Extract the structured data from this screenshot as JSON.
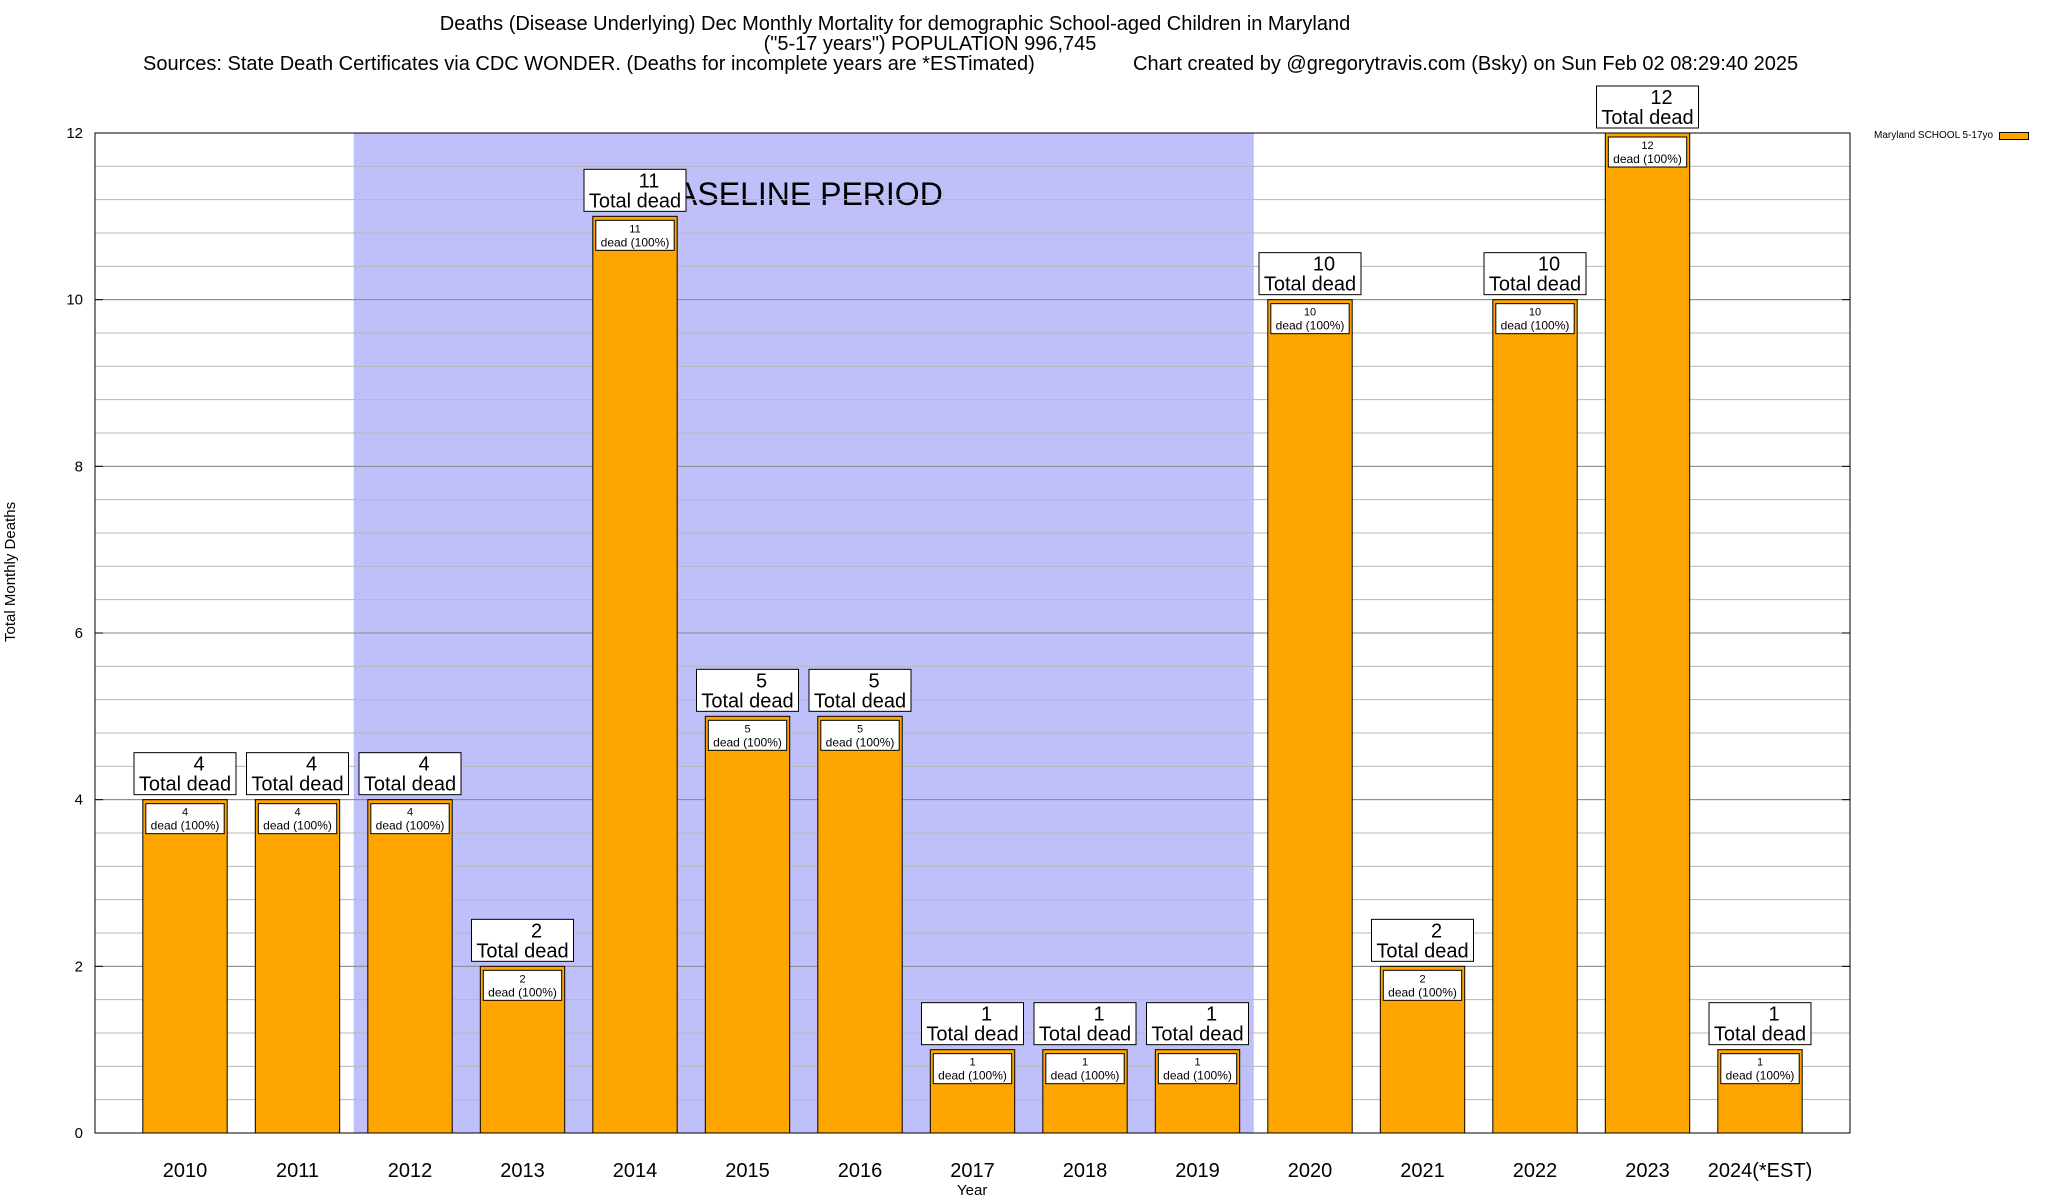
{
  "title": {
    "line1": "Deaths (Disease Underlying) Dec Monthly Mortality for demographic School-aged Children in Maryland",
    "line2": "(\"5-17 years\") POPULATION 996,745",
    "line3": "Sources: State Death Certificates via CDC WONDER. (Deaths for incomplete years are *ESTimated)",
    "credit": "Chart created by @gregorytravis.com (Bsky) on Sun Feb 02 08:29:40 2025"
  },
  "legend": {
    "label": "Maryland SCHOOL 5-17yo",
    "color": "#ffa500"
  },
  "chart_data": {
    "type": "bar",
    "xlabel": "Year",
    "ylabel": "Total Monthly Deaths",
    "ylim": [
      0,
      12
    ],
    "yticks": [
      0,
      2,
      4,
      6,
      8,
      10,
      12
    ],
    "grid": true,
    "legend_position": "top-right outside",
    "baseline_label": "BASELINE PERIOD",
    "baseline_range": [
      "2012",
      "2019"
    ],
    "bar_color": "#ffa500",
    "baseline_color": "#bfbffa",
    "total_label_text": "Total dead",
    "inner_label_text": "dead (100%)",
    "categories": [
      "2010",
      "2011",
      "2012",
      "2013",
      "2014",
      "2015",
      "2016",
      "2017",
      "2018",
      "2019",
      "2020",
      "2021",
      "2022",
      "2023",
      "2024(*EST)"
    ],
    "series": [
      {
        "values": [
          4,
          4,
          4,
          2,
          11,
          5,
          5,
          1,
          1,
          1,
          10,
          2,
          10,
          12,
          1
        ]
      }
    ]
  }
}
